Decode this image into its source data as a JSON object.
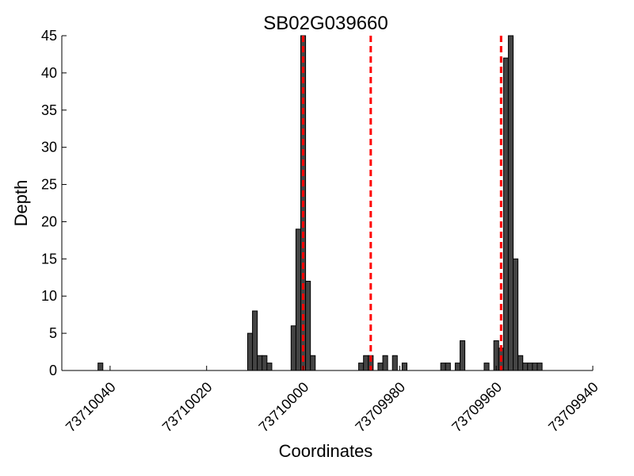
{
  "chart_data": {
    "type": "bar",
    "title": "SB02G039660",
    "xlabel": "Coordinates",
    "ylabel": "Depth",
    "x_axis_reversed": true,
    "xlim": [
      73710050,
      73709940
    ],
    "ylim": [
      0,
      45
    ],
    "x_ticks": [
      73710040,
      73710020,
      73710000,
      73709980,
      73709960,
      73709940
    ],
    "y_ticks": [
      0,
      5,
      10,
      15,
      20,
      25,
      30,
      35,
      40,
      45
    ],
    "bar_color": "#444444",
    "marker_color": "#ff0000",
    "grid": false,
    "bins": [
      {
        "x": 73710042,
        "depth": 1
      },
      {
        "x": 73710011,
        "depth": 5
      },
      {
        "x": 73710010,
        "depth": 8
      },
      {
        "x": 73710009,
        "depth": 2
      },
      {
        "x": 73710008,
        "depth": 2
      },
      {
        "x": 73710007,
        "depth": 1
      },
      {
        "x": 73710005,
        "depth": 0
      },
      {
        "x": 73710004,
        "depth": 0
      },
      {
        "x": 73710002,
        "depth": 6
      },
      {
        "x": 73710001,
        "depth": 19
      },
      {
        "x": 73710000,
        "depth": 46
      },
      {
        "x": 73709999,
        "depth": 12
      },
      {
        "x": 73709998,
        "depth": 2
      },
      {
        "x": 73709988,
        "depth": 1
      },
      {
        "x": 73709987,
        "depth": 2
      },
      {
        "x": 73709986,
        "depth": 2
      },
      {
        "x": 73709984,
        "depth": 1
      },
      {
        "x": 73709983,
        "depth": 2
      },
      {
        "x": 73709981,
        "depth": 2
      },
      {
        "x": 73709979,
        "depth": 1
      },
      {
        "x": 73709971,
        "depth": 1
      },
      {
        "x": 73709970,
        "depth": 1
      },
      {
        "x": 73709968,
        "depth": 1
      },
      {
        "x": 73709967,
        "depth": 4
      },
      {
        "x": 73709962,
        "depth": 1
      },
      {
        "x": 73709960,
        "depth": 4
      },
      {
        "x": 73709959,
        "depth": 3
      },
      {
        "x": 73709958,
        "depth": 42
      },
      {
        "x": 73709957,
        "depth": 46
      },
      {
        "x": 73709956,
        "depth": 15
      },
      {
        "x": 73709955,
        "depth": 2
      },
      {
        "x": 73709954,
        "depth": 1
      },
      {
        "x": 73709953,
        "depth": 1
      },
      {
        "x": 73709952,
        "depth": 1
      },
      {
        "x": 73709951,
        "depth": 1
      }
    ],
    "marker_lines": [
      73710000,
      73709986,
      73709959
    ]
  }
}
